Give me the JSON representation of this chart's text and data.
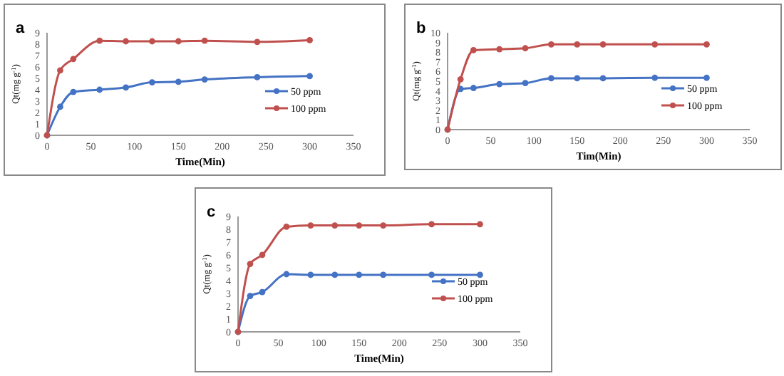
{
  "chart_data": [
    {
      "type": "line",
      "title": "a",
      "xlabel": "Time(Min)",
      "ylabel": "Qt(mg g$^{-1}$)",
      "x": [
        0,
        15,
        30,
        60,
        90,
        120,
        150,
        180,
        240,
        300
      ],
      "xlim": [
        0,
        350
      ],
      "xticks": [
        0,
        50,
        100,
        150,
        200,
        250,
        300,
        350
      ],
      "ylim": [
        0,
        9
      ],
      "yticks": [
        0,
        1,
        2,
        3,
        4,
        5,
        6,
        7,
        8,
        9
      ],
      "marker": "circle",
      "legend": "right",
      "grid": false,
      "series": [
        {
          "name": "50 ppm",
          "color": "#4472c4",
          "values": [
            0,
            2.5,
            3.8,
            4.0,
            4.2,
            4.65,
            4.7,
            4.9,
            5.1,
            5.2
          ]
        },
        {
          "name": "100 ppm",
          "color": "#c0504d",
          "values": [
            0,
            5.7,
            6.7,
            8.3,
            8.25,
            8.25,
            8.25,
            8.3,
            8.2,
            8.35
          ]
        }
      ]
    },
    {
      "type": "line",
      "title": "b",
      "xlabel": "Tim(Min)",
      "ylabel": "Qt(mg g$^{-1}$)",
      "x": [
        0,
        15,
        30,
        60,
        90,
        120,
        150,
        180,
        240,
        300
      ],
      "xlim": [
        0,
        350
      ],
      "xticks": [
        0,
        50,
        100,
        150,
        200,
        250,
        300,
        350
      ],
      "ylim": [
        0,
        10
      ],
      "yticks": [
        0,
        1,
        2,
        3,
        4,
        5,
        6,
        7,
        8,
        9,
        10
      ],
      "marker": "circle",
      "legend": "right",
      "grid": false,
      "series": [
        {
          "name": "50 ppm",
          "color": "#4472c4",
          "values": [
            0,
            4.2,
            4.3,
            4.7,
            4.8,
            5.3,
            5.3,
            5.3,
            5.35,
            5.35
          ]
        },
        {
          "name": "100 ppm",
          "color": "#c0504d",
          "values": [
            0,
            5.2,
            8.2,
            8.3,
            8.4,
            8.8,
            8.8,
            8.8,
            8.8,
            8.8
          ]
        }
      ]
    },
    {
      "type": "line",
      "title": "c",
      "xlabel": "Time(Min)",
      "ylabel": "Qt(mg g$^{-1}$)",
      "x": [
        0,
        15,
        30,
        60,
        90,
        120,
        150,
        180,
        240,
        300
      ],
      "xlim": [
        0,
        350
      ],
      "xticks": [
        0,
        50,
        100,
        150,
        200,
        250,
        300,
        350
      ],
      "ylim": [
        0,
        9
      ],
      "yticks": [
        0,
        1,
        2,
        3,
        4,
        5,
        6,
        7,
        8,
        9
      ],
      "marker": "circle",
      "legend": "right",
      "grid": false,
      "series": [
        {
          "name": "50 ppm",
          "color": "#4472c4",
          "values": [
            0,
            2.8,
            3.1,
            4.5,
            4.45,
            4.45,
            4.45,
            4.45,
            4.45,
            4.45
          ]
        },
        {
          "name": "100 ppm",
          "color": "#c0504d",
          "values": [
            0,
            5.3,
            6.0,
            8.2,
            8.3,
            8.3,
            8.3,
            8.3,
            8.4,
            8.4
          ]
        }
      ]
    }
  ]
}
